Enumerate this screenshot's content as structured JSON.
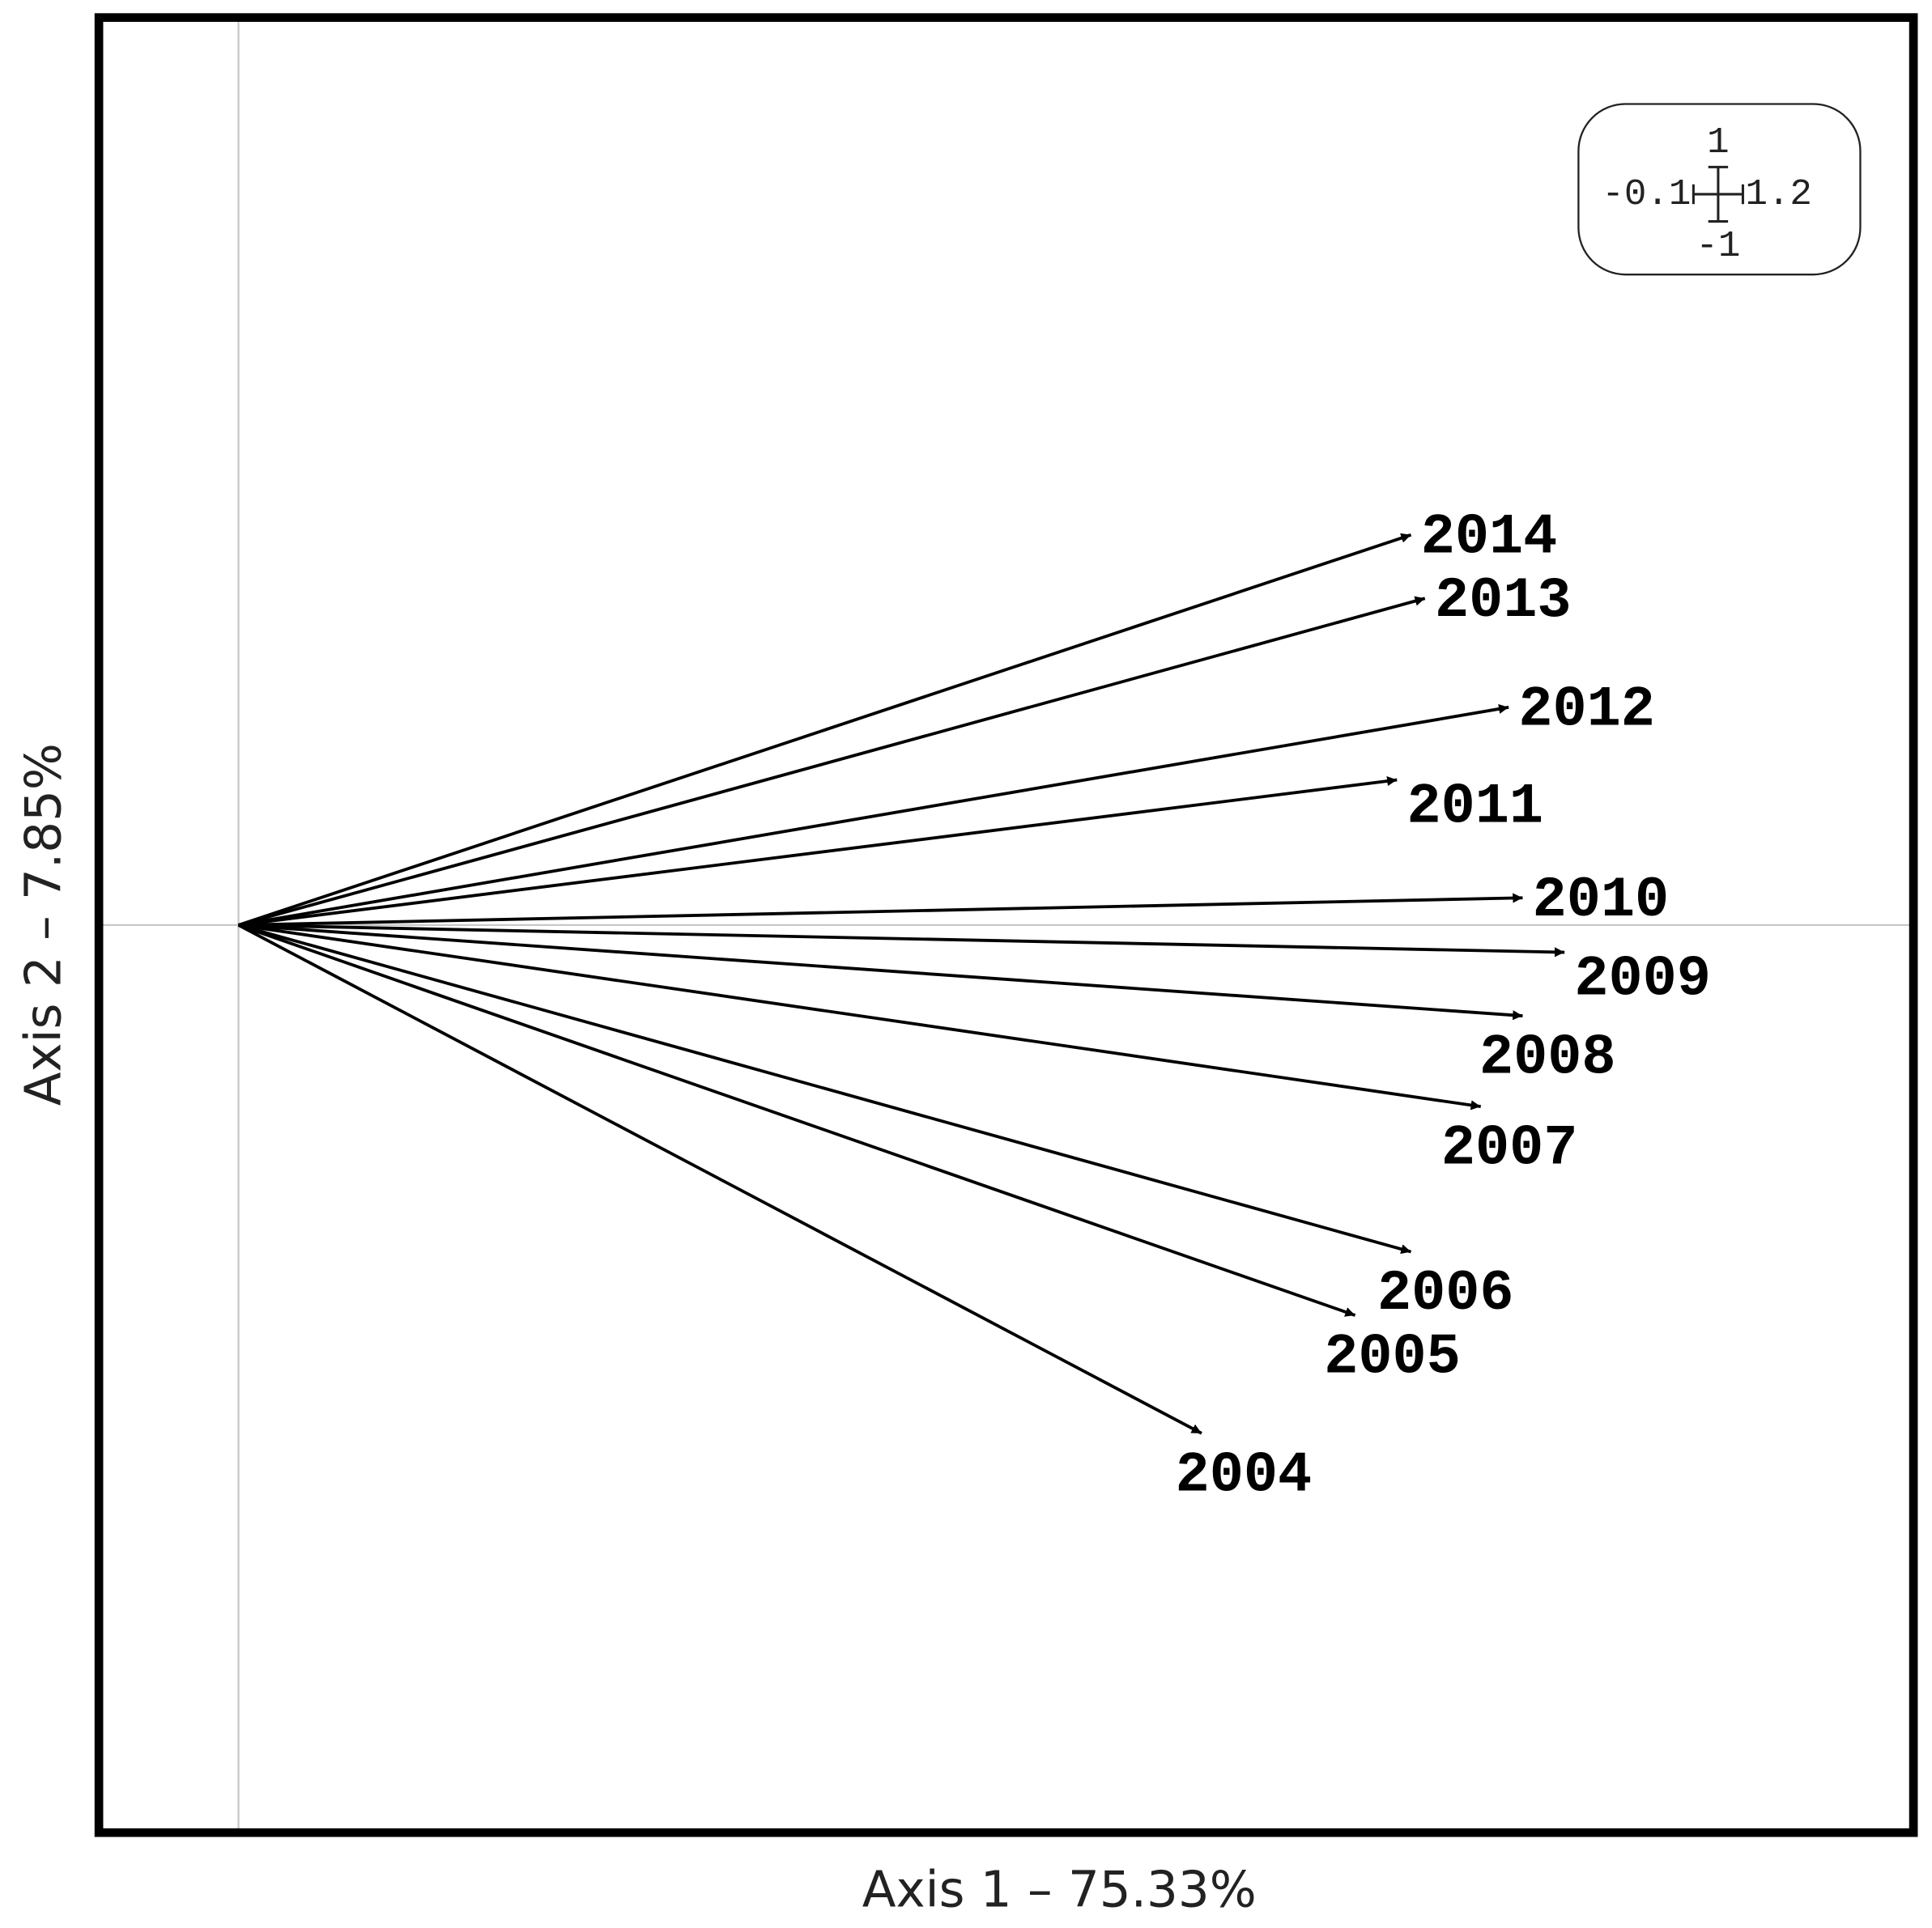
{
  "chart_data": {
    "type": "biplot",
    "x_label": "Axis 1 – 75.33%",
    "y_label": "Axis 2 – 7.85%",
    "series": [
      {
        "name": "2014",
        "x": 0.84,
        "y": 0.43
      },
      {
        "name": "2013",
        "x": 0.85,
        "y": 0.36
      },
      {
        "name": "2012",
        "x": 0.91,
        "y": 0.24
      },
      {
        "name": "2011",
        "x": 0.83,
        "y": 0.16
      },
      {
        "name": "2010",
        "x": 0.92,
        "y": 0.03
      },
      {
        "name": "2009",
        "x": 0.95,
        "y": -0.03
      },
      {
        "name": "2008",
        "x": 0.92,
        "y": -0.1
      },
      {
        "name": "2007",
        "x": 0.89,
        "y": -0.2
      },
      {
        "name": "2006",
        "x": 0.84,
        "y": -0.36
      },
      {
        "name": "2005",
        "x": 0.8,
        "y": -0.43
      },
      {
        "name": "2004",
        "x": 0.69,
        "y": -0.56
      }
    ],
    "color": "#000000",
    "xlim": [
      -0.1,
      1.2
    ],
    "ylim": [
      -1,
      1
    ]
  }
}
